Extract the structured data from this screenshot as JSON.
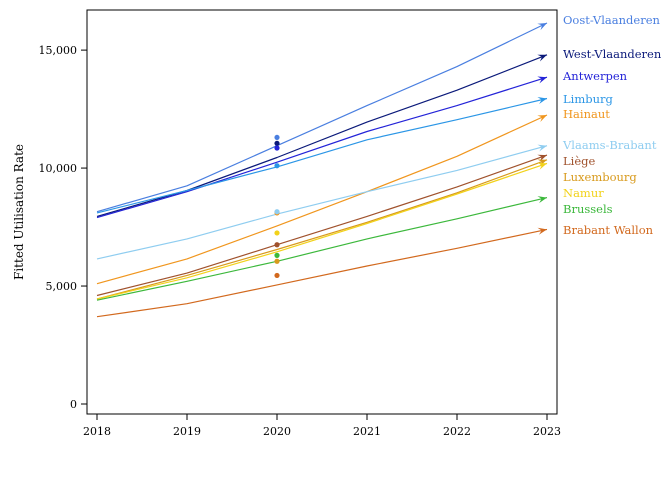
{
  "chart_data": {
    "type": "line",
    "title": "",
    "xlabel": "",
    "ylabel": "Fitted Utilisation Rate",
    "x": [
      2018,
      2019,
      2020,
      2021,
      2022,
      2023
    ],
    "x_tick_labels": [
      "2018",
      "2019",
      "2020",
      "2021",
      "2022",
      "2023"
    ],
    "xlim": [
      2018,
      2023
    ],
    "ylim": [
      0,
      16700
    ],
    "y_ticks": [
      0,
      5000,
      10000,
      15000
    ],
    "y_tick_labels": [
      "0",
      "5,000",
      "10,000",
      "15,000"
    ],
    "grid": false,
    "legend_placement": "direct labels at line ends (right)",
    "series": [
      {
        "name": "Oost-Vlaanderen",
        "color": "#4a7fe0",
        "values": [
          8150,
          9250,
          10950,
          12650,
          14300,
          16150
        ],
        "observed_2020": 11300
      },
      {
        "name": "West-Vlaanderen",
        "color": "#0b1a7a",
        "values": [
          7950,
          9050,
          10450,
          11950,
          13300,
          14800
        ],
        "observed_2020": 11050
      },
      {
        "name": "Antwerpen",
        "color": "#2424d8",
        "values": [
          7900,
          9000,
          10250,
          11550,
          12650,
          13850
        ],
        "observed_2020": 10850
      },
      {
        "name": "Limburg",
        "color": "#2b96e6",
        "values": [
          8100,
          9050,
          10050,
          11200,
          12050,
          12950
        ],
        "observed_2020": 10100
      },
      {
        "name": "Hainaut",
        "color": "#f0961e",
        "values": [
          5100,
          6150,
          7550,
          9000,
          10500,
          12250
        ],
        "observed_2020": 8100
      },
      {
        "name": "Vlaams-Brabant",
        "color": "#8fcdf0",
        "values": [
          6150,
          7000,
          8050,
          9000,
          9900,
          10950
        ],
        "observed_2020": 8150
      },
      {
        "name": "Liège",
        "color": "#a0522d",
        "values": [
          4600,
          5550,
          6750,
          7950,
          9200,
          10550
        ],
        "observed_2020": 6750
      },
      {
        "name": "Luxembourg",
        "color": "#d89a1c",
        "values": [
          4450,
          5450,
          6550,
          7700,
          8950,
          10350
        ],
        "observed_2020": 6050
      },
      {
        "name": "Namur",
        "color": "#f2d21a",
        "values": [
          4450,
          5350,
          6450,
          7650,
          8900,
          10200
        ],
        "observed_2020": 7250
      },
      {
        "name": "Brussels",
        "color": "#3cb83c",
        "values": [
          4400,
          5200,
          6050,
          7000,
          7850,
          8750
        ],
        "observed_2020": 6300
      },
      {
        "name": "Brabant Wallon",
        "color": "#d2691e",
        "values": [
          3700,
          4250,
          5050,
          5850,
          6600,
          7400
        ],
        "observed_2020": 5450
      }
    ]
  }
}
